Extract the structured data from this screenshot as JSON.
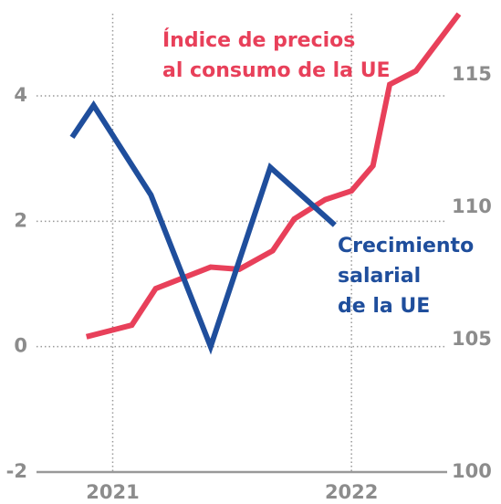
{
  "chart_data": {
    "type": "line",
    "annotations": [
      {
        "lines": [
          "Índice de precios",
          "al consumo de la UE"
        ],
        "color": "#e8405a"
      },
      {
        "lines": [
          "Crecimiento",
          "salarial",
          "de la UE"
        ],
        "color": "#1f4e9c"
      }
    ],
    "series": [
      {
        "name": "Crecimiento salarial de la UE",
        "color": "#1f4e9c",
        "x": [
          2020.83,
          2020.92,
          2021.16,
          2021.41,
          2021.66,
          2021.93
        ],
        "values": [
          3.34,
          3.85,
          2.42,
          0,
          2.86,
          1.94
        ]
      },
      {
        "name": "Índice de precios al consumo de la UE",
        "color": "#e8405a",
        "axis": "y2",
        "x": [
          2020.89,
          2021.08,
          2021.18,
          2021.41,
          2021.53,
          2021.67,
          2021.76,
          2021.89,
          2022.0,
          2022.09,
          2022.16,
          2022.27,
          2022.45
        ],
        "values": [
          105.11,
          105.55,
          106.93,
          107.74,
          107.66,
          108.36,
          109.56,
          110.29,
          110.62,
          111.57,
          114.64,
          115.15,
          117.3
        ]
      }
    ],
    "xlim": [
      2020.7,
      2022.5
    ],
    "xticks": [
      2021,
      2022
    ],
    "ylim": [
      -2,
      5.53
    ],
    "yticks": [
      -2,
      0,
      2,
      4
    ],
    "y2lim": [
      100,
      117.83
    ],
    "y2ticks": [
      100,
      105,
      110,
      115
    ],
    "grid": true
  }
}
